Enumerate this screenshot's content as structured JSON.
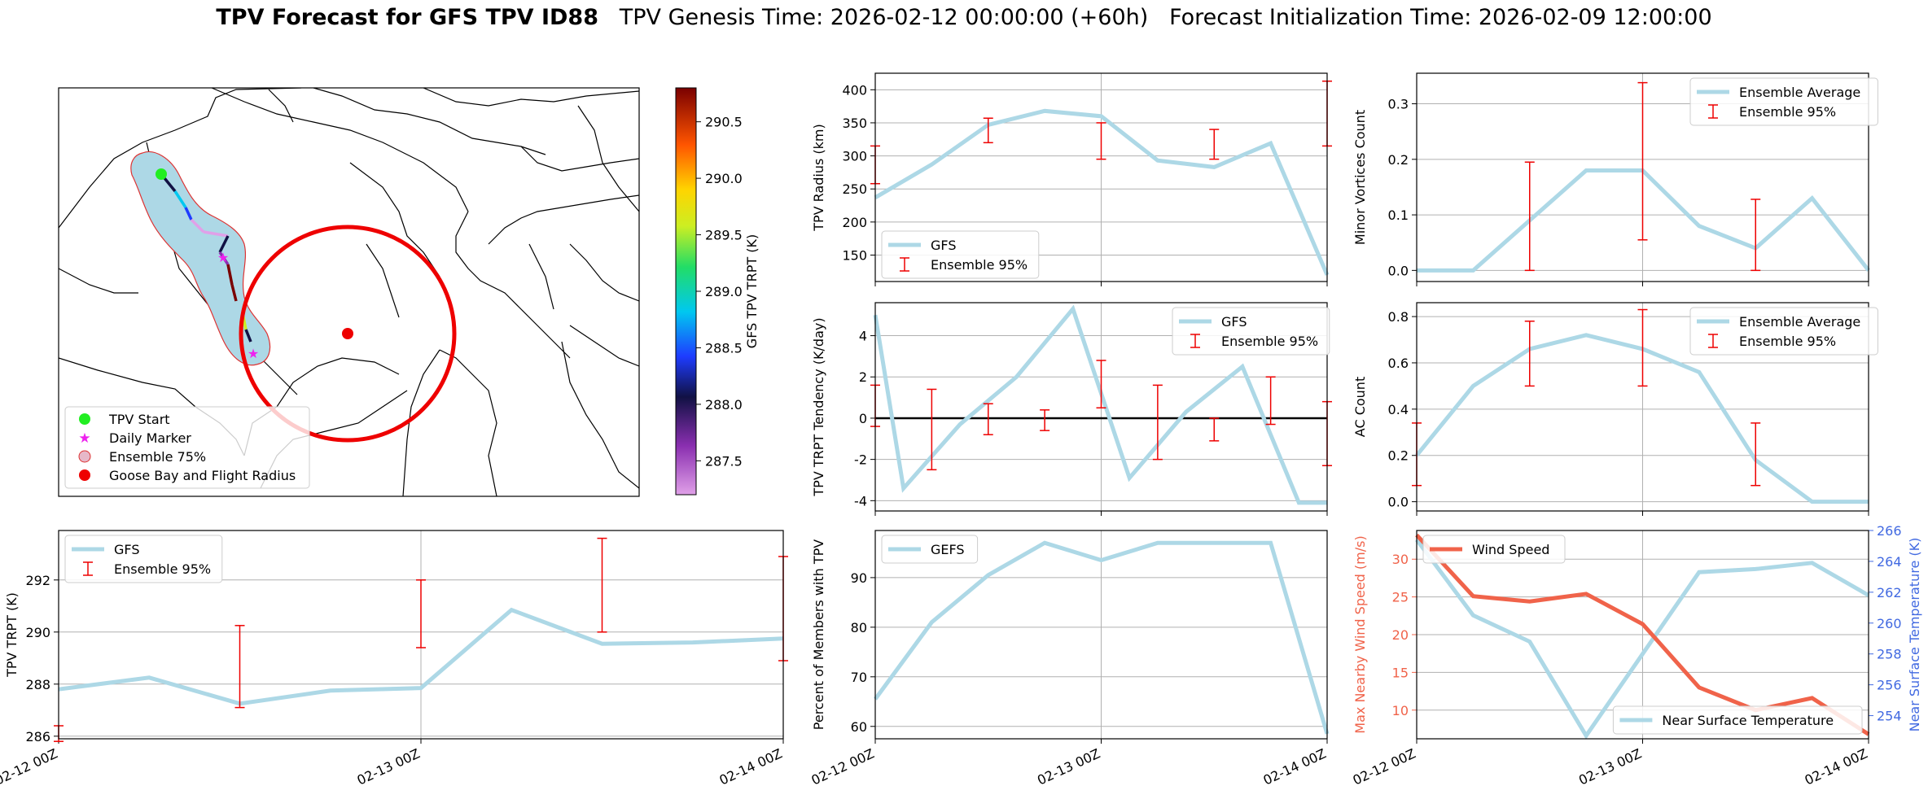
{
  "title": {
    "main": "TPV Forecast for GFS TPV ID88",
    "genesis": "TPV Genesis Time: 2026-02-12 00:00:00 (+60h)",
    "init": "Forecast Initialization Time: 2026-02-09 12:00:00"
  },
  "chart_data": [
    {
      "id": "map",
      "type": "scatter",
      "title": "",
      "colorbar": {
        "label": "GFS TPV TRPT (K)",
        "ticks": [
          287.5,
          288.0,
          288.5,
          289.0,
          289.5,
          290.0,
          290.5
        ],
        "range": [
          287.2,
          290.8
        ]
      },
      "legend": {
        "position": "lower-left",
        "entries": [
          "TPV Start",
          "Daily Marker",
          "Ensemble 75%",
          "Goose Bay and Flight Radius"
        ]
      },
      "colors": {
        "start": "#22ee22",
        "daily": "#ee22ee",
        "ensemble_fill": "#add8e6",
        "ensemble_edge": "#dd3333",
        "goose_bay": "#ee0000"
      }
    },
    {
      "id": "radius",
      "type": "line",
      "ylabel": "TPV Radius (km)",
      "xlabel": "",
      "ylim": [
        110,
        425
      ],
      "yticks": [
        150,
        200,
        250,
        300,
        350,
        400
      ],
      "x": [
        0,
        6,
        12,
        18,
        24,
        30,
        36,
        42,
        48
      ],
      "series": [
        {
          "name": "GFS",
          "values": [
            237,
            287,
            347,
            368,
            360,
            293,
            283,
            319,
            120
          ]
        }
      ],
      "errorbars": {
        "name": "Ensemble 95%",
        "x": [
          0,
          12,
          24,
          36,
          48
        ],
        "low": [
          258,
          320,
          295,
          295,
          315
        ],
        "high": [
          315,
          357,
          350,
          340,
          413
        ]
      },
      "legend": "lower-left"
    },
    {
      "id": "minor",
      "type": "line",
      "ylabel": "Minor Vortices Count",
      "ylim": [
        -0.02,
        0.355
      ],
      "yticks": [
        0.0,
        0.1,
        0.2,
        0.3
      ],
      "x": [
        0,
        6,
        12,
        18,
        24,
        30,
        36,
        42,
        48
      ],
      "series": [
        {
          "name": "Ensemble Average",
          "values": [
            0.0,
            0.0,
            0.09,
            0.18,
            0.18,
            0.08,
            0.04,
            0.13,
            0.0
          ]
        }
      ],
      "errorbars": {
        "name": "Ensemble 95%",
        "x": [
          12,
          24,
          36
        ],
        "low": [
          0.0,
          0.055,
          0.0
        ],
        "high": [
          0.195,
          0.338,
          0.128
        ]
      },
      "legend": "top-right"
    },
    {
      "id": "tendency",
      "type": "line",
      "ylabel": "TPV TRPT Tendency (K/day)",
      "ylim": [
        -4.5,
        5.6
      ],
      "yticks": [
        -4,
        -2,
        0,
        2,
        4
      ],
      "x": [
        0,
        3,
        9,
        15,
        21,
        27,
        33,
        39,
        45,
        48
      ],
      "series": [
        {
          "name": "GFS",
          "values": [
            5.0,
            -3.4,
            -0.3,
            2.0,
            5.3,
            -2.9,
            0.3,
            2.5,
            -4.1,
            -4.1
          ]
        }
      ],
      "errorbars": {
        "name": "Ensemble 95%",
        "x": [
          0,
          6,
          12,
          18,
          24,
          30,
          36,
          42,
          48
        ],
        "low": [
          -0.4,
          -2.5,
          -0.8,
          -0.6,
          0.5,
          -2.0,
          -1.1,
          -0.3,
          -2.3
        ],
        "high": [
          1.6,
          1.4,
          0.7,
          0.4,
          2.8,
          1.6,
          0.0,
          2.0,
          0.8
        ]
      },
      "zero_line": true,
      "legend": "top-right"
    },
    {
      "id": "ac",
      "type": "line",
      "ylabel": "AC Count",
      "ylim": [
        -0.04,
        0.86
      ],
      "yticks": [
        0.0,
        0.2,
        0.4,
        0.6,
        0.8
      ],
      "x": [
        0,
        6,
        12,
        18,
        24,
        30,
        36,
        42,
        48
      ],
      "series": [
        {
          "name": "Ensemble Average",
          "values": [
            0.2,
            0.5,
            0.66,
            0.72,
            0.66,
            0.56,
            0.18,
            0.0,
            0.0
          ]
        }
      ],
      "errorbars": {
        "name": "Ensemble 95%",
        "x": [
          0,
          12,
          24,
          36
        ],
        "low": [
          0.07,
          0.5,
          0.5,
          0.07
        ],
        "high": [
          0.34,
          0.78,
          0.83,
          0.34
        ]
      },
      "legend": "top-right"
    },
    {
      "id": "trpt",
      "type": "line",
      "ylabel": "TPV TRPT (K)",
      "ylim": [
        285.9,
        293.9
      ],
      "yticks": [
        286,
        288,
        290,
        292
      ],
      "xticks": [
        "02-12 00Z",
        "02-13 00Z",
        "02-14 00Z"
      ],
      "x": [
        0,
        6,
        12,
        18,
        24,
        30,
        36,
        42,
        48
      ],
      "series": [
        {
          "name": "GFS",
          "values": [
            287.8,
            288.25,
            287.25,
            287.75,
            287.85,
            290.85,
            289.55,
            289.6,
            289.75
          ]
        }
      ],
      "errorbars": {
        "name": "Ensemble 95%",
        "x": [
          0,
          12,
          24,
          36,
          48
        ],
        "low": [
          285.8,
          287.1,
          289.4,
          290.0,
          288.9
        ],
        "high": [
          286.4,
          290.25,
          292.0,
          293.6,
          292.9
        ]
      },
      "legend": "top-left"
    },
    {
      "id": "percent",
      "type": "line",
      "ylabel": "Percent of Members with TPV",
      "ylim": [
        57.5,
        99.5
      ],
      "yticks": [
        60,
        70,
        80,
        90
      ],
      "xticks": [
        "02-12 00Z",
        "02-13 00Z",
        "02-14 00Z"
      ],
      "x": [
        0,
        6,
        12,
        18,
        24,
        30,
        36,
        42,
        48
      ],
      "series": [
        {
          "name": "GEFS",
          "values": [
            65.5,
            81,
            90.5,
            97,
            93.5,
            97,
            97,
            97,
            58.5
          ]
        }
      ],
      "legend": "top-left"
    },
    {
      "id": "wind",
      "type": "line",
      "ylabel": "Max Nearby Wind Speed (m/s)",
      "ylabel_right": "Near Surface Temperature (K)",
      "ylim": [
        6.2,
        33.8
      ],
      "yticks": [
        10,
        15,
        20,
        25,
        30
      ],
      "ylim_right": [
        252.5,
        266
      ],
      "yticks_right": [
        254,
        256,
        258,
        260,
        262,
        264,
        266
      ],
      "xticks": [
        "02-12 00Z",
        "02-13 00Z",
        "02-14 00Z"
      ],
      "x": [
        0,
        6,
        12,
        18,
        24,
        30,
        36,
        42,
        48
      ],
      "series": [
        {
          "name": "Wind Speed",
          "values": [
            33.2,
            25.1,
            24.4,
            25.4,
            21.4,
            13.0,
            10.0,
            11.6,
            6.8
          ],
          "axis": "left"
        },
        {
          "name": "Near Surface Temperature",
          "values": [
            265.4,
            260.5,
            258.8,
            252.7,
            258.0,
            263.3,
            263.5,
            263.9,
            261.8
          ],
          "axis": "right"
        }
      ],
      "colors": {
        "wind": "#f0634a",
        "temp": "#add8e6",
        "left_axis": "#f0634a",
        "right_axis": "#4169e1"
      },
      "legend": [
        "top-left",
        "lower-right"
      ]
    }
  ]
}
